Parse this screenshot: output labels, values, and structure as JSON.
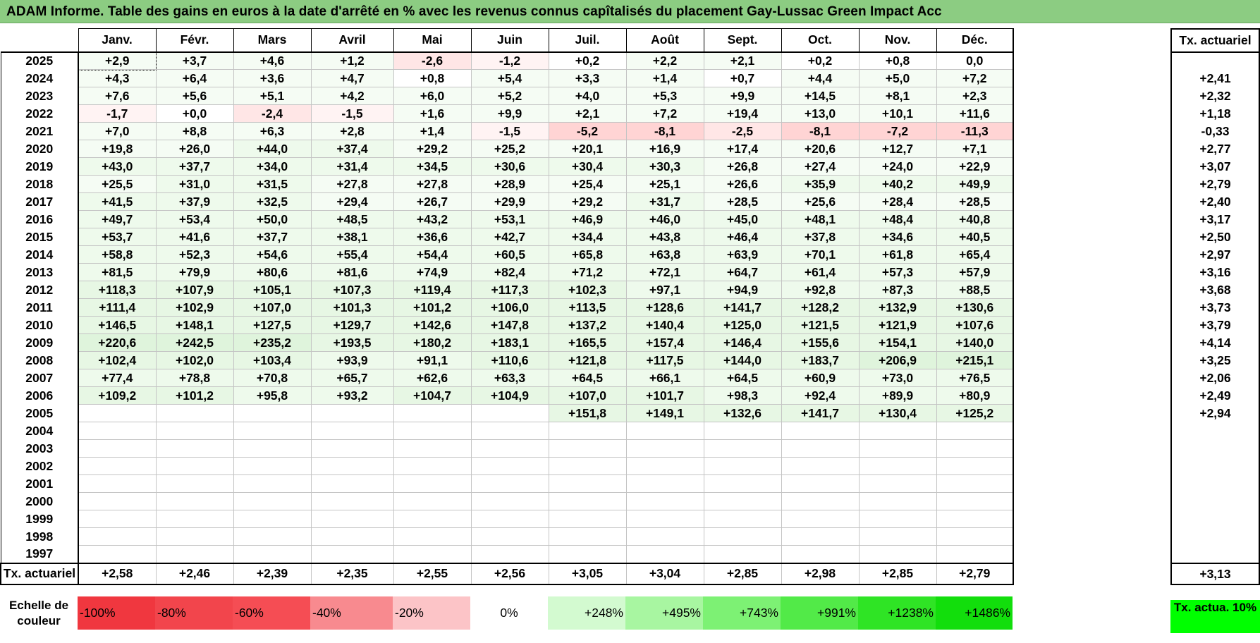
{
  "title": "ADAM Informe. Table des gains en euros à la date d'arrêté en % avec les revenus connus capîtalisés du placement Gay-Lussac Green Impact Acc",
  "months": [
    "Janv.",
    "Févr.",
    "Mars",
    "Avril",
    "Mai",
    "Juin",
    "Juil.",
    "Août",
    "Sept.",
    "Oct.",
    "Nov.",
    "Déc."
  ],
  "rate_header": "Tx. actuariel",
  "rows": [
    {
      "year": "2025",
      "values": [
        "+2,9",
        "+3,7",
        "+4,6",
        "+1,2",
        "-2,6",
        "-1,2",
        "+0,2",
        "+2,2",
        "+2,1",
        "+0,2",
        "+0,8",
        "0,0"
      ],
      "rate": ""
    },
    {
      "year": "2024",
      "values": [
        "+4,3",
        "+6,4",
        "+3,6",
        "+4,7",
        "+0,8",
        "+5,4",
        "+3,3",
        "+1,4",
        "+0,7",
        "+4,4",
        "+5,0",
        "+7,2"
      ],
      "rate": "+2,41"
    },
    {
      "year": "2023",
      "values": [
        "+7,6",
        "+5,6",
        "+5,1",
        "+4,2",
        "+6,0",
        "+5,2",
        "+4,0",
        "+5,3",
        "+9,9",
        "+14,5",
        "+8,1",
        "+2,3"
      ],
      "rate": "+2,32"
    },
    {
      "year": "2022",
      "values": [
        "-1,7",
        "+0,0",
        "-2,4",
        "-1,5",
        "+1,6",
        "+9,9",
        "+2,1",
        "+7,2",
        "+19,4",
        "+13,0",
        "+10,1",
        "+11,6"
      ],
      "rate": "+1,18"
    },
    {
      "year": "2021",
      "values": [
        "+7,0",
        "+8,8",
        "+6,3",
        "+2,8",
        "+1,4",
        "-1,5",
        "-5,2",
        "-8,1",
        "-2,5",
        "-8,1",
        "-7,2",
        "-11,3"
      ],
      "rate": "-0,33"
    },
    {
      "year": "2020",
      "values": [
        "+19,8",
        "+26,0",
        "+44,0",
        "+37,4",
        "+29,2",
        "+25,2",
        "+20,1",
        "+16,9",
        "+17,4",
        "+20,6",
        "+12,7",
        "+7,1"
      ],
      "rate": "+2,77"
    },
    {
      "year": "2019",
      "values": [
        "+43,0",
        "+37,7",
        "+34,0",
        "+31,4",
        "+34,5",
        "+30,6",
        "+30,4",
        "+30,3",
        "+26,8",
        "+27,4",
        "+24,0",
        "+22,9"
      ],
      "rate": "+3,07"
    },
    {
      "year": "2018",
      "values": [
        "+25,5",
        "+31,0",
        "+31,5",
        "+27,8",
        "+27,8",
        "+28,9",
        "+25,4",
        "+25,1",
        "+26,6",
        "+35,9",
        "+40,2",
        "+49,9"
      ],
      "rate": "+2,79"
    },
    {
      "year": "2017",
      "values": [
        "+41,5",
        "+37,9",
        "+32,5",
        "+29,4",
        "+26,7",
        "+29,9",
        "+29,2",
        "+31,7",
        "+28,5",
        "+25,6",
        "+28,4",
        "+28,5"
      ],
      "rate": "+2,40"
    },
    {
      "year": "2016",
      "values": [
        "+49,7",
        "+53,4",
        "+50,0",
        "+48,5",
        "+43,2",
        "+53,1",
        "+46,9",
        "+46,0",
        "+45,0",
        "+48,1",
        "+48,4",
        "+40,8"
      ],
      "rate": "+3,17"
    },
    {
      "year": "2015",
      "values": [
        "+53,7",
        "+41,6",
        "+37,7",
        "+38,1",
        "+36,6",
        "+42,7",
        "+34,4",
        "+43,8",
        "+46,4",
        "+37,8",
        "+34,6",
        "+40,5"
      ],
      "rate": "+2,50"
    },
    {
      "year": "2014",
      "values": [
        "+58,8",
        "+52,3",
        "+54,6",
        "+55,4",
        "+54,4",
        "+60,5",
        "+65,8",
        "+63,8",
        "+63,9",
        "+70,1",
        "+61,8",
        "+65,4"
      ],
      "rate": "+2,97"
    },
    {
      "year": "2013",
      "values": [
        "+81,5",
        "+79,9",
        "+80,6",
        "+81,6",
        "+74,9",
        "+82,4",
        "+71,2",
        "+72,1",
        "+64,7",
        "+61,4",
        "+57,3",
        "+57,9"
      ],
      "rate": "+3,16"
    },
    {
      "year": "2012",
      "values": [
        "+118,3",
        "+107,9",
        "+105,1",
        "+107,3",
        "+119,4",
        "+117,3",
        "+102,3",
        "+97,1",
        "+94,9",
        "+92,8",
        "+87,3",
        "+88,5"
      ],
      "rate": "+3,68"
    },
    {
      "year": "2011",
      "values": [
        "+111,4",
        "+102,9",
        "+107,0",
        "+101,3",
        "+101,2",
        "+106,0",
        "+113,5",
        "+128,6",
        "+141,7",
        "+128,2",
        "+132,9",
        "+130,6"
      ],
      "rate": "+3,73"
    },
    {
      "year": "2010",
      "values": [
        "+146,5",
        "+148,1",
        "+127,5",
        "+129,7",
        "+142,6",
        "+147,8",
        "+137,2",
        "+140,4",
        "+125,0",
        "+121,5",
        "+121,9",
        "+107,6"
      ],
      "rate": "+3,79"
    },
    {
      "year": "2009",
      "values": [
        "+220,6",
        "+242,5",
        "+235,2",
        "+193,5",
        "+180,2",
        "+183,1",
        "+165,5",
        "+157,4",
        "+146,4",
        "+155,6",
        "+154,1",
        "+140,0"
      ],
      "rate": "+4,14"
    },
    {
      "year": "2008",
      "values": [
        "+102,4",
        "+102,0",
        "+103,4",
        "+93,9",
        "+91,1",
        "+110,6",
        "+121,8",
        "+117,5",
        "+144,0",
        "+183,7",
        "+206,9",
        "+215,1"
      ],
      "rate": "+3,25"
    },
    {
      "year": "2007",
      "values": [
        "+77,4",
        "+78,8",
        "+70,8",
        "+65,7",
        "+62,6",
        "+63,3",
        "+64,5",
        "+66,1",
        "+64,5",
        "+60,9",
        "+73,0",
        "+76,5"
      ],
      "rate": "+2,06"
    },
    {
      "year": "2006",
      "values": [
        "+109,2",
        "+101,2",
        "+95,8",
        "+93,2",
        "+104,7",
        "+104,9",
        "+107,0",
        "+101,7",
        "+98,3",
        "+92,4",
        "+89,9",
        "+80,9"
      ],
      "rate": "+2,49"
    },
    {
      "year": "2005",
      "values": [
        "",
        "",
        "",
        "",
        "",
        "",
        "+151,8",
        "+149,1",
        "+132,6",
        "+141,7",
        "+130,4",
        "+125,2"
      ],
      "rate": "+2,94"
    },
    {
      "year": "2004",
      "values": [
        "",
        "",
        "",
        "",
        "",
        "",
        "",
        "",
        "",
        "",
        "",
        ""
      ],
      "rate": ""
    },
    {
      "year": "2003",
      "values": [
        "",
        "",
        "",
        "",
        "",
        "",
        "",
        "",
        "",
        "",
        "",
        ""
      ],
      "rate": ""
    },
    {
      "year": "2002",
      "values": [
        "",
        "",
        "",
        "",
        "",
        "",
        "",
        "",
        "",
        "",
        "",
        ""
      ],
      "rate": ""
    },
    {
      "year": "2001",
      "values": [
        "",
        "",
        "",
        "",
        "",
        "",
        "",
        "",
        "",
        "",
        "",
        ""
      ],
      "rate": ""
    },
    {
      "year": "2000",
      "values": [
        "",
        "",
        "",
        "",
        "",
        "",
        "",
        "",
        "",
        "",
        "",
        ""
      ],
      "rate": ""
    },
    {
      "year": "1999",
      "values": [
        "",
        "",
        "",
        "",
        "",
        "",
        "",
        "",
        "",
        "",
        "",
        ""
      ],
      "rate": ""
    },
    {
      "year": "1998",
      "values": [
        "",
        "",
        "",
        "",
        "",
        "",
        "",
        "",
        "",
        "",
        "",
        ""
      ],
      "rate": ""
    },
    {
      "year": "1997",
      "values": [
        "",
        "",
        "",
        "",
        "",
        "",
        "",
        "",
        "",
        "",
        "",
        ""
      ],
      "rate": ""
    }
  ],
  "footer": {
    "label": "Tx. actuariel",
    "values": [
      "+2,58",
      "+2,46",
      "+2,39",
      "+2,35",
      "+2,55",
      "+2,56",
      "+3,05",
      "+3,04",
      "+2,85",
      "+2,98",
      "+2,85",
      "+2,79"
    ],
    "overall": "+3,13"
  },
  "scale": {
    "label": "Echelle de couleur",
    "steps": [
      {
        "text": "-100%",
        "color": "#f0373f",
        "align": "neg"
      },
      {
        "text": "-80%",
        "color": "#f2454c",
        "align": "neg"
      },
      {
        "text": "-60%",
        "color": "#f54d54",
        "align": "neg"
      },
      {
        "text": "-40%",
        "color": "#f88a8f",
        "align": "neg"
      },
      {
        "text": "-20%",
        "color": "#fcc4c7",
        "align": "neg"
      },
      {
        "text": "0%",
        "color": "#ffffff",
        "align": "zero"
      },
      {
        "text": "+248%",
        "color": "#d3fad0",
        "align": "pos"
      },
      {
        "text": "+495%",
        "color": "#a8f6a1",
        "align": "pos"
      },
      {
        "text": "+743%",
        "color": "#7df174",
        "align": "pos"
      },
      {
        "text": "+991%",
        "color": "#52ea48",
        "align": "pos"
      },
      {
        "text": "+1238%",
        "color": "#2fe425",
        "align": "pos"
      },
      {
        "text": "+1486%",
        "color": "#12de0c",
        "align": "pos"
      }
    ],
    "legend_box": "Tx. actua. 10%",
    "legend_color": "#00ff00"
  }
}
